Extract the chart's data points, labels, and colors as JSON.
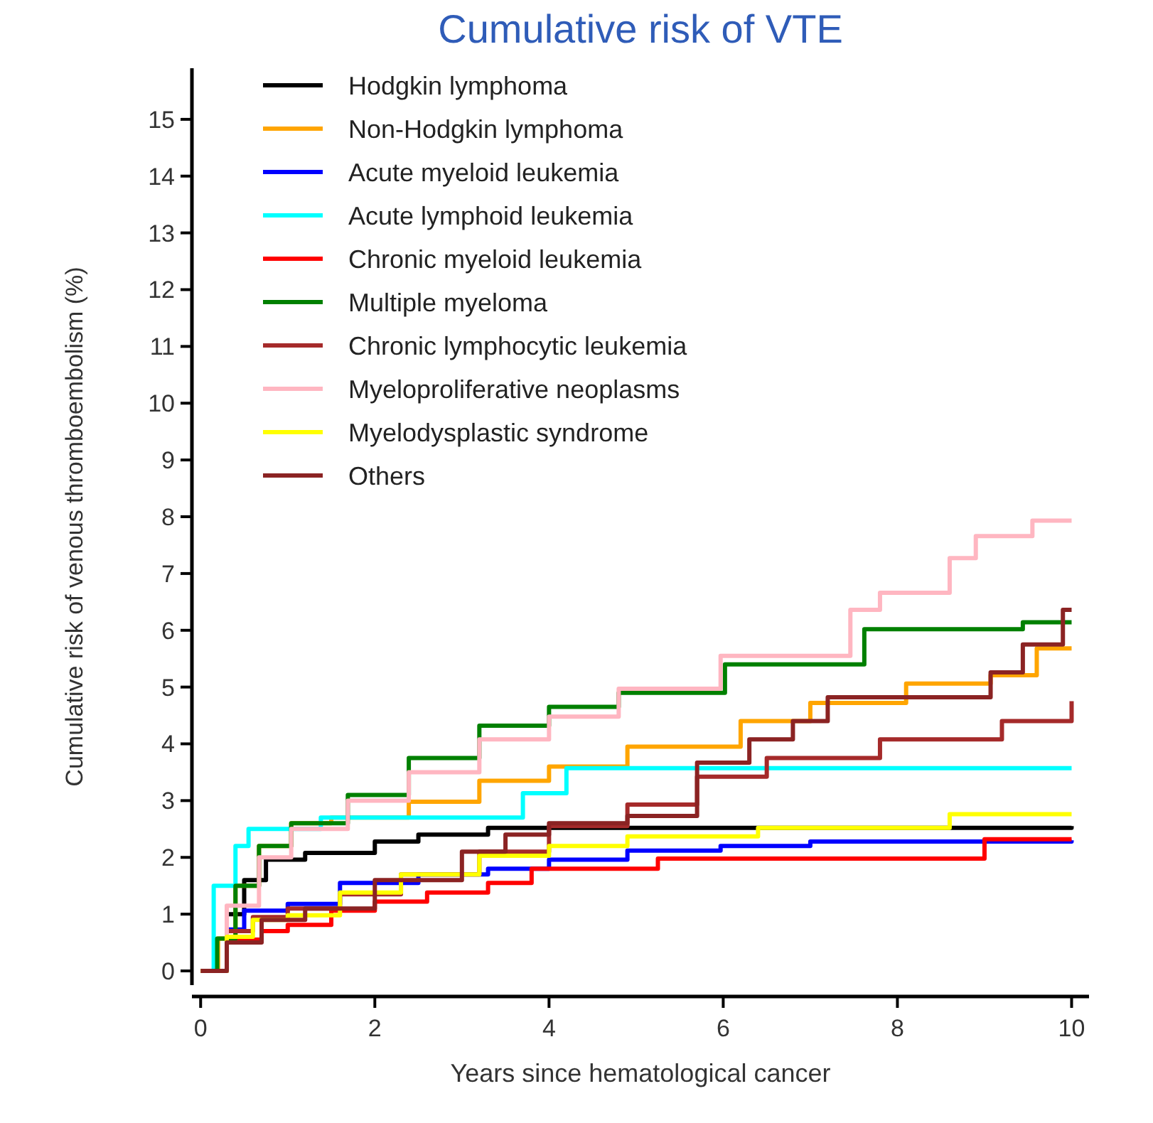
{
  "chart_data": {
    "type": "step",
    "title": "Cumulative risk of VTE",
    "xlabel": "Years since hematological cancer",
    "ylabel": "Cumulative risk of venous thromboembolism (%)",
    "xlim": [
      -0.1,
      10.2
    ],
    "xticks": [
      0,
      2,
      4,
      6,
      8,
      10
    ],
    "ylim": [
      -0.25,
      15.9
    ],
    "yticks": [
      0,
      1,
      2,
      3,
      4,
      5,
      6,
      7,
      8,
      9,
      10,
      11,
      12,
      13,
      14,
      15
    ],
    "grid": false,
    "legend": "top left",
    "line_style": "solid",
    "marker": "none",
    "series": [
      {
        "name": "Hodgkin lymphoma",
        "color": "#000000",
        "x": [
          0,
          0.3,
          0.5,
          0.75,
          1.2,
          2,
          2.5,
          3.3,
          10
        ],
        "values": [
          0,
          1.0,
          1.6,
          1.96,
          2.08,
          2.28,
          2.4,
          2.52,
          2.55
        ]
      },
      {
        "name": "Non-Hodgkin lymphoma",
        "color": "#ffa500",
        "x": [
          0,
          0.2,
          0.4,
          0.67,
          1.04,
          1.5,
          2.39,
          3.2,
          4,
          4.9,
          6.2,
          7,
          8.1,
          9.07,
          9.6,
          10
        ],
        "values": [
          0,
          0.57,
          1.5,
          2.2,
          2.6,
          2.7,
          2.98,
          3.35,
          3.6,
          3.95,
          4.4,
          4.72,
          5.06,
          5.21,
          5.68,
          5.68
        ]
      },
      {
        "name": "Acute myeloid leukemia",
        "color": "#0000ff",
        "x": [
          0,
          0.3,
          0.5,
          1,
          1.6,
          2.5,
          3.3,
          4,
          4.9,
          5.97,
          7,
          10
        ],
        "values": [
          0,
          0.73,
          1.06,
          1.18,
          1.55,
          1.7,
          1.8,
          1.96,
          2.12,
          2.2,
          2.28,
          2.3
        ]
      },
      {
        "name": "Acute lymphoid leukemia",
        "color": "#00ffff",
        "x": [
          0,
          0.15,
          0.4,
          0.55,
          1.38,
          3.7,
          4.2,
          10
        ],
        "values": [
          0,
          1.5,
          2.2,
          2.5,
          2.7,
          3.13,
          3.57,
          3.57
        ]
      },
      {
        "name": "Chronic myeloid leukemia",
        "color": "#ff0000",
        "x": [
          0,
          0.3,
          0.7,
          1,
          1.5,
          2,
          2.6,
          3.3,
          3.8,
          5.25,
          9,
          10
        ],
        "values": [
          0,
          0.55,
          0.7,
          0.81,
          1.06,
          1.22,
          1.38,
          1.55,
          1.8,
          1.98,
          2.32,
          2.32
        ]
      },
      {
        "name": "Multiple myeloma",
        "color": "#008000",
        "x": [
          0,
          0.19,
          0.4,
          0.67,
          1.04,
          1.69,
          2.39,
          3.2,
          4,
          4.8,
          6.02,
          7.62,
          9.44,
          10
        ],
        "values": [
          0,
          0.57,
          1.5,
          2.2,
          2.6,
          3.1,
          3.75,
          4.32,
          4.65,
          4.9,
          5.4,
          6.02,
          6.14,
          6.14
        ]
      },
      {
        "name": "Chronic lymphocytic leukemia",
        "color": "#a52a2a",
        "x": [
          0,
          0.3,
          0.6,
          1,
          1.6,
          2.3,
          3.2,
          4,
          4.9,
          5.7,
          6.5,
          7.8,
          9.2,
          10
        ],
        "values": [
          0,
          0.7,
          0.95,
          1.1,
          1.35,
          1.7,
          2.1,
          2.55,
          2.93,
          3.42,
          3.75,
          4.08,
          4.4,
          4.75
        ]
      },
      {
        "name": "Myeloproliferative neoplasms",
        "color": "#ffb6c1",
        "x": [
          0,
          0.3,
          0.67,
          1.04,
          1.69,
          2.39,
          3.2,
          4,
          4.8,
          5.97,
          7.46,
          7.8,
          8.6,
          8.9,
          9.55,
          10
        ],
        "values": [
          0,
          1.15,
          2.0,
          2.5,
          3.0,
          3.5,
          4.08,
          4.48,
          4.97,
          5.55,
          6.36,
          6.66,
          7.27,
          7.66,
          7.93,
          7.93
        ]
      },
      {
        "name": "Myelodysplastic syndrome",
        "color": "#ffff00",
        "x": [
          0,
          0.3,
          0.6,
          1,
          1.6,
          2.3,
          3.2,
          4,
          4.9,
          6.4,
          8.6,
          10
        ],
        "values": [
          0,
          0.6,
          0.9,
          0.98,
          1.38,
          1.7,
          2.03,
          2.2,
          2.37,
          2.52,
          2.76,
          2.76
        ]
      },
      {
        "name": "Others",
        "color": "#8b2323",
        "x": [
          0,
          0.3,
          0.7,
          1.2,
          2,
          3,
          3.5,
          4,
          4.9,
          5.7,
          6.3,
          6.8,
          7.2,
          9.07,
          9.44,
          9.9,
          10
        ],
        "values": [
          0,
          0.5,
          0.9,
          1.1,
          1.6,
          2.1,
          2.4,
          2.6,
          2.73,
          3.67,
          4.08,
          4.4,
          4.82,
          5.26,
          5.75,
          6.36,
          6.36
        ]
      }
    ]
  }
}
